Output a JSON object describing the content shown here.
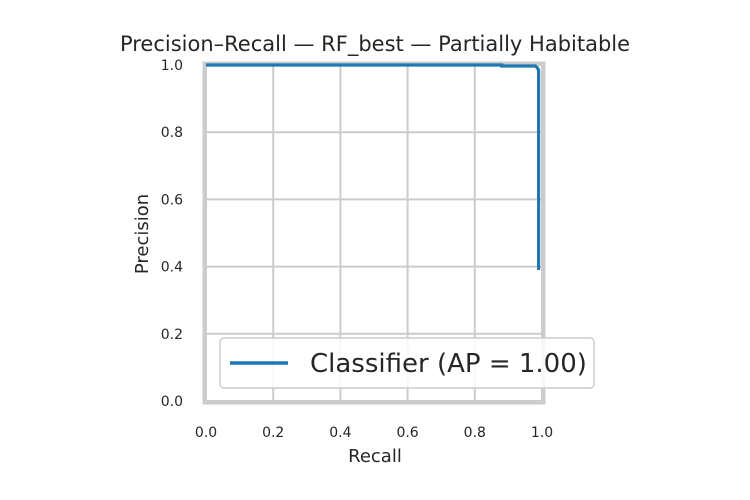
{
  "chart_data": {
    "type": "line",
    "title": "Precision–Recall — RF_best — Partially Habitable",
    "xlabel": "Recall",
    "ylabel": "Precision",
    "xlim": [
      0.0,
      1.0
    ],
    "ylim": [
      0.0,
      1.0
    ],
    "xticks": [
      "0.0",
      "0.2",
      "0.4",
      "0.6",
      "0.8",
      "1.0"
    ],
    "yticks": [
      "0.0",
      "0.2",
      "0.4",
      "0.6",
      "0.8",
      "1.0"
    ],
    "grid": true,
    "legend_position": "lower-right",
    "series": [
      {
        "name": "Classifier (AP = 1.00)",
        "color": "#1f77b4",
        "x": [
          0.0,
          0.88,
          0.88,
          0.98,
          0.985,
          0.99,
          0.99
        ],
        "y": [
          1.0,
          1.0,
          0.997,
          0.997,
          0.993,
          0.985,
          0.39
        ]
      }
    ]
  }
}
